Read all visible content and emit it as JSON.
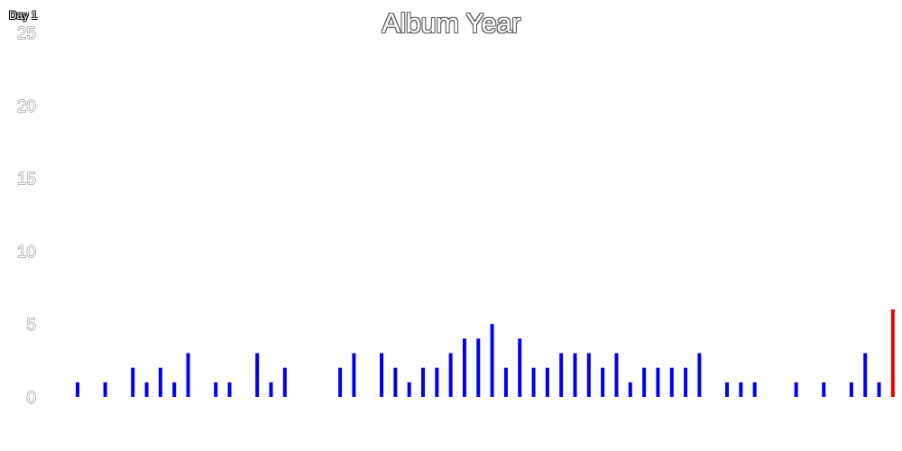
{
  "header": {
    "day_label": "Day 1"
  },
  "colors": {
    "bar": "#0000ee",
    "highlight": "#ee0000"
  },
  "chart_data": {
    "type": "bar",
    "title": "Album Year",
    "xlabel": "",
    "ylabel": "",
    "ylim": [
      0,
      25
    ],
    "yticks": [
      "0",
      "5",
      "10",
      "15",
      "20",
      "25"
    ],
    "grid": false,
    "legend": "none",
    "highlight_index": 59,
    "values": [
      1,
      0,
      1,
      0,
      2,
      1,
      2,
      1,
      3,
      0,
      1,
      1,
      0,
      3,
      1,
      2,
      0,
      0,
      0,
      2,
      3,
      0,
      3,
      2,
      1,
      2,
      2,
      3,
      4,
      4,
      5,
      2,
      4,
      2,
      2,
      3,
      3,
      3,
      2,
      3,
      1,
      2,
      2,
      2,
      2,
      3,
      0,
      1,
      1,
      1,
      0,
      0,
      1,
      0,
      1,
      0,
      1,
      3,
      1,
      6
    ]
  }
}
